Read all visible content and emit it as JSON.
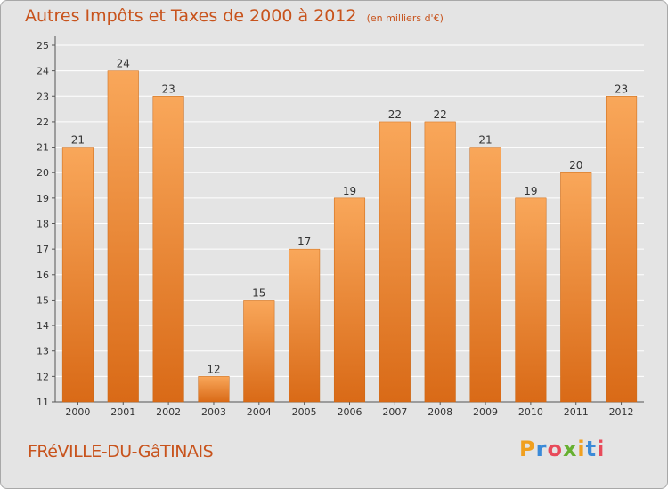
{
  "title": "Autres Impôts et Taxes de 2000 à 2012",
  "subtitle": "(en milliers d'€)",
  "location": "FRéVILLE-DU-GâTINAIS",
  "logo": {
    "text": "Proxiti",
    "letters": [
      {
        "ch": "P",
        "color": "#f0a020"
      },
      {
        "ch": "r",
        "color": "#3a8ad8"
      },
      {
        "ch": "o",
        "color": "#e84a5a"
      },
      {
        "ch": "x",
        "color": "#66b030"
      },
      {
        "ch": "i",
        "color": "#f0a020"
      },
      {
        "ch": "t",
        "color": "#3a8ad8"
      },
      {
        "ch": "i",
        "color": "#e84a5a"
      }
    ]
  },
  "colors": {
    "bar_top": "#f9a75a",
    "bar_bottom": "#d96a17",
    "bar_edge": "#c86512",
    "title": "#c8531c",
    "grid": "#ffffff",
    "plot_bg": "#e4e4e4"
  },
  "chart_data": {
    "type": "bar",
    "title": "Autres Impôts et Taxes de 2000 à 2012",
    "subtitle": "(en milliers d'€)",
    "categories": [
      "2000",
      "2001",
      "2002",
      "2003",
      "2004",
      "2005",
      "2006",
      "2007",
      "2008",
      "2009",
      "2010",
      "2011",
      "2012"
    ],
    "values": [
      21,
      24,
      23,
      12,
      15,
      17,
      19,
      22,
      22,
      21,
      19,
      20,
      23
    ],
    "ylim": [
      11,
      25
    ],
    "yticks": [
      11,
      12,
      13,
      14,
      15,
      16,
      17,
      18,
      19,
      20,
      21,
      22,
      23,
      24,
      25
    ],
    "grid": true
  }
}
